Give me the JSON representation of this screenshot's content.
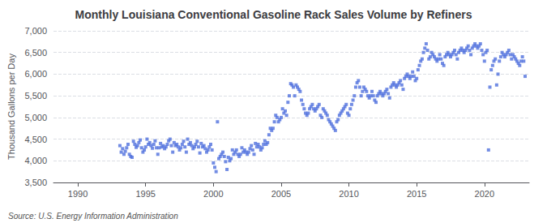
{
  "chart_data": {
    "type": "scatter",
    "title": "Monthly Louisiana Conventional Gasoline Rack Sales Volume by Refiners",
    "ylabel": "Thousand Gallons per Day",
    "annotations": [
      "Source: U.S. Energy Information Administration"
    ],
    "marker": "square",
    "grid": "y",
    "xlim": [
      1988.2,
      2023.3
    ],
    "xticks": [
      1990,
      1995,
      2000,
      2005,
      2010,
      2015,
      2020
    ],
    "ylim": [
      3500,
      7000
    ],
    "yticks": [
      {
        "value": 3500,
        "label": "3,500"
      },
      {
        "value": 4000,
        "label": "4,000"
      },
      {
        "value": 4500,
        "label": "4,500"
      },
      {
        "value": 5000,
        "label": "5,000"
      },
      {
        "value": 5500,
        "label": "5,500"
      },
      {
        "value": 6000,
        "label": "6,000"
      },
      {
        "value": 6500,
        "label": "6,500"
      },
      {
        "value": 7000,
        "label": "7,000"
      }
    ],
    "x": [
      1993.1,
      1993.2,
      1993.3,
      1993.4,
      1993.5,
      1993.6,
      1993.7,
      1993.8,
      1993.9,
      1994.0,
      1994.1,
      1994.2,
      1994.3,
      1994.4,
      1994.5,
      1994.6,
      1994.7,
      1994.8,
      1994.9,
      1995.0,
      1995.1,
      1995.2,
      1995.3,
      1995.4,
      1995.5,
      1995.6,
      1995.7,
      1995.8,
      1995.9,
      1996.0,
      1996.1,
      1996.2,
      1996.3,
      1996.4,
      1996.5,
      1996.6,
      1996.7,
      1996.8,
      1996.9,
      1997.0,
      1997.1,
      1997.2,
      1997.3,
      1997.4,
      1997.5,
      1997.6,
      1997.7,
      1997.8,
      1997.9,
      1998.0,
      1998.1,
      1998.2,
      1998.3,
      1998.4,
      1998.5,
      1998.6,
      1998.7,
      1998.8,
      1998.9,
      1999.0,
      1999.1,
      1999.2,
      1999.3,
      1999.4,
      1999.5,
      1999.6,
      1999.7,
      1999.8,
      1999.9,
      2000.0,
      2000.1,
      2000.2,
      2000.3,
      2000.4,
      2000.5,
      2000.6,
      2000.7,
      2000.8,
      2000.9,
      2001.0,
      2001.1,
      2001.2,
      2001.3,
      2001.4,
      2001.5,
      2001.6,
      2001.7,
      2001.8,
      2001.9,
      2002.0,
      2002.1,
      2002.2,
      2002.3,
      2002.4,
      2002.5,
      2002.6,
      2002.7,
      2002.8,
      2002.9,
      2003.0,
      2003.1,
      2003.2,
      2003.3,
      2003.4,
      2003.5,
      2003.6,
      2003.7,
      2003.8,
      2003.9,
      2004.0,
      2004.1,
      2004.2,
      2004.3,
      2004.4,
      2004.5,
      2004.6,
      2004.7,
      2004.8,
      2004.9,
      2005.0,
      2005.1,
      2005.2,
      2005.3,
      2005.4,
      2005.5,
      2005.6,
      2005.7,
      2005.8,
      2005.9,
      2006.0,
      2006.1,
      2006.2,
      2006.3,
      2006.4,
      2006.5,
      2006.6,
      2006.7,
      2006.8,
      2006.9,
      2007.0,
      2007.1,
      2007.2,
      2007.3,
      2007.4,
      2007.5,
      2007.6,
      2007.7,
      2007.8,
      2007.9,
      2008.0,
      2008.1,
      2008.2,
      2008.3,
      2008.4,
      2008.5,
      2008.6,
      2008.7,
      2008.8,
      2008.9,
      2009.0,
      2009.1,
      2009.2,
      2009.3,
      2009.4,
      2009.5,
      2009.6,
      2009.7,
      2009.8,
      2009.9,
      2010.0,
      2010.1,
      2010.2,
      2010.3,
      2010.4,
      2010.5,
      2010.6,
      2010.7,
      2010.8,
      2010.9,
      2011.0,
      2011.1,
      2011.2,
      2011.3,
      2011.4,
      2011.5,
      2011.6,
      2011.7,
      2011.8,
      2011.9,
      2012.0,
      2012.1,
      2012.2,
      2012.3,
      2012.4,
      2012.5,
      2012.6,
      2012.7,
      2012.8,
      2012.9,
      2013.0,
      2013.1,
      2013.2,
      2013.3,
      2013.4,
      2013.5,
      2013.6,
      2013.7,
      2013.8,
      2013.9,
      2014.0,
      2014.1,
      2014.2,
      2014.3,
      2014.4,
      2014.5,
      2014.6,
      2014.7,
      2014.8,
      2014.9,
      2015.0,
      2015.1,
      2015.2,
      2015.3,
      2015.4,
      2015.5,
      2015.6,
      2015.7,
      2015.8,
      2015.9,
      2016.0,
      2016.1,
      2016.2,
      2016.3,
      2016.4,
      2016.5,
      2016.6,
      2016.7,
      2016.8,
      2016.9,
      2017.0,
      2017.1,
      2017.2,
      2017.3,
      2017.4,
      2017.5,
      2017.6,
      2017.7,
      2017.8,
      2017.9,
      2018.0,
      2018.1,
      2018.2,
      2018.3,
      2018.4,
      2018.5,
      2018.6,
      2018.7,
      2018.8,
      2018.9,
      2019.0,
      2019.1,
      2019.2,
      2019.3,
      2019.4,
      2019.5,
      2019.6,
      2019.7,
      2019.8,
      2019.9,
      2020.0,
      2020.1,
      2020.2,
      2020.3,
      2020.4,
      2020.5,
      2020.6,
      2020.7,
      2020.8,
      2020.9,
      2021.0,
      2021.1,
      2021.2,
      2021.3,
      2021.4,
      2021.5,
      2021.6,
      2021.7,
      2021.8,
      2021.9,
      2022.0,
      2022.1,
      2022.2,
      2022.3,
      2022.4,
      2022.5,
      2022.6,
      2022.7,
      2022.8,
      2022.9,
      2023.0
    ],
    "values": [
      4350,
      4200,
      4280,
      4150,
      4220,
      4300,
      4380,
      4150,
      4100,
      4080,
      4450,
      4380,
      4310,
      4350,
      4420,
      4480,
      4300,
      4200,
      4250,
      4320,
      4500,
      4380,
      4420,
      4350,
      4290,
      4380,
      4460,
      4300,
      4150,
      4300,
      4400,
      4320,
      4350,
      4280,
      4320,
      4380,
      4460,
      4500,
      4350,
      4200,
      4420,
      4350,
      4380,
      4320,
      4250,
      4300,
      4380,
      4450,
      4320,
      4200,
      4500,
      4380,
      4420,
      4350,
      4280,
      4320,
      4380,
      4450,
      4320,
      4180,
      4400,
      4320,
      4350,
      4280,
      4200,
      4250,
      4320,
      4380,
      4250,
      3950,
      3850,
      3750,
      4900,
      4050,
      4100,
      4150,
      4200,
      4100,
      3980,
      3800,
      4080,
      4000,
      4050,
      4250,
      4150,
      4200,
      4250,
      4150,
      4100,
      4150,
      4300,
      4200,
      4250,
      4200,
      4150,
      4200,
      4280,
      4350,
      4250,
      4150,
      4400,
      4320,
      4380,
      4320,
      4250,
      4300,
      4380,
      4460,
      4380,
      4420,
      4600,
      4750,
      4700,
      4750,
      4900,
      5050,
      5000,
      4900,
      4950,
      5000,
      5200,
      5100,
      5150,
      5050,
      5350,
      5500,
      5780,
      5750,
      5700,
      5500,
      5750,
      5700,
      5650,
      5600,
      5400,
      5300,
      5200,
      5100,
      5050,
      5100,
      5200,
      5250,
      5300,
      5200,
      5150,
      5200,
      5250,
      5300,
      5050,
      5000,
      5200,
      5150,
      5100,
      5050,
      4950,
      4900,
      4850,
      4800,
      4750,
      4700,
      4900,
      4950,
      5050,
      5100,
      5150,
      5200,
      5250,
      5300,
      5100,
      5050,
      5200,
      5300,
      5400,
      5500,
      5700,
      5800,
      5850,
      5700,
      5500,
      5600,
      5700,
      5650,
      5600,
      5500,
      5450,
      5500,
      5600,
      5500,
      5400,
      5350,
      5500,
      5550,
      5600,
      5550,
      5500,
      5550,
      5600,
      5650,
      5550,
      5450,
      5700,
      5750,
      5800,
      5750,
      5700,
      5750,
      5800,
      5850,
      5750,
      5650,
      5900,
      5950,
      6000,
      5950,
      5900,
      5950,
      6050,
      5950,
      5850,
      5900,
      6100,
      6200,
      6300,
      6350,
      6500,
      6600,
      6700,
      6550,
      6350,
      6400,
      6500,
      6450,
      6400,
      6350,
      6300,
      6350,
      6450,
      6350,
      6250,
      6200,
      6400,
      6450,
      6500,
      6450,
      6400,
      6450,
      6500,
      6550,
      6450,
      6350,
      6500,
      6550,
      6600,
      6550,
      6500,
      6550,
      6600,
      6650,
      6550,
      6450,
      6600,
      6650,
      6700,
      6650,
      6600,
      6650,
      6700,
      6550,
      6450,
      6300,
      6500,
      6550,
      4250,
      5700,
      6100,
      6200,
      6300,
      6350,
      5750,
      6000,
      6300,
      6400,
      6500,
      6450,
      6400,
      6450,
      6500,
      6550,
      6450,
      6350,
      6450,
      6400,
      6350,
      6300,
      6250,
      6200,
      6300,
      6400,
      6300,
      5950
    ]
  }
}
